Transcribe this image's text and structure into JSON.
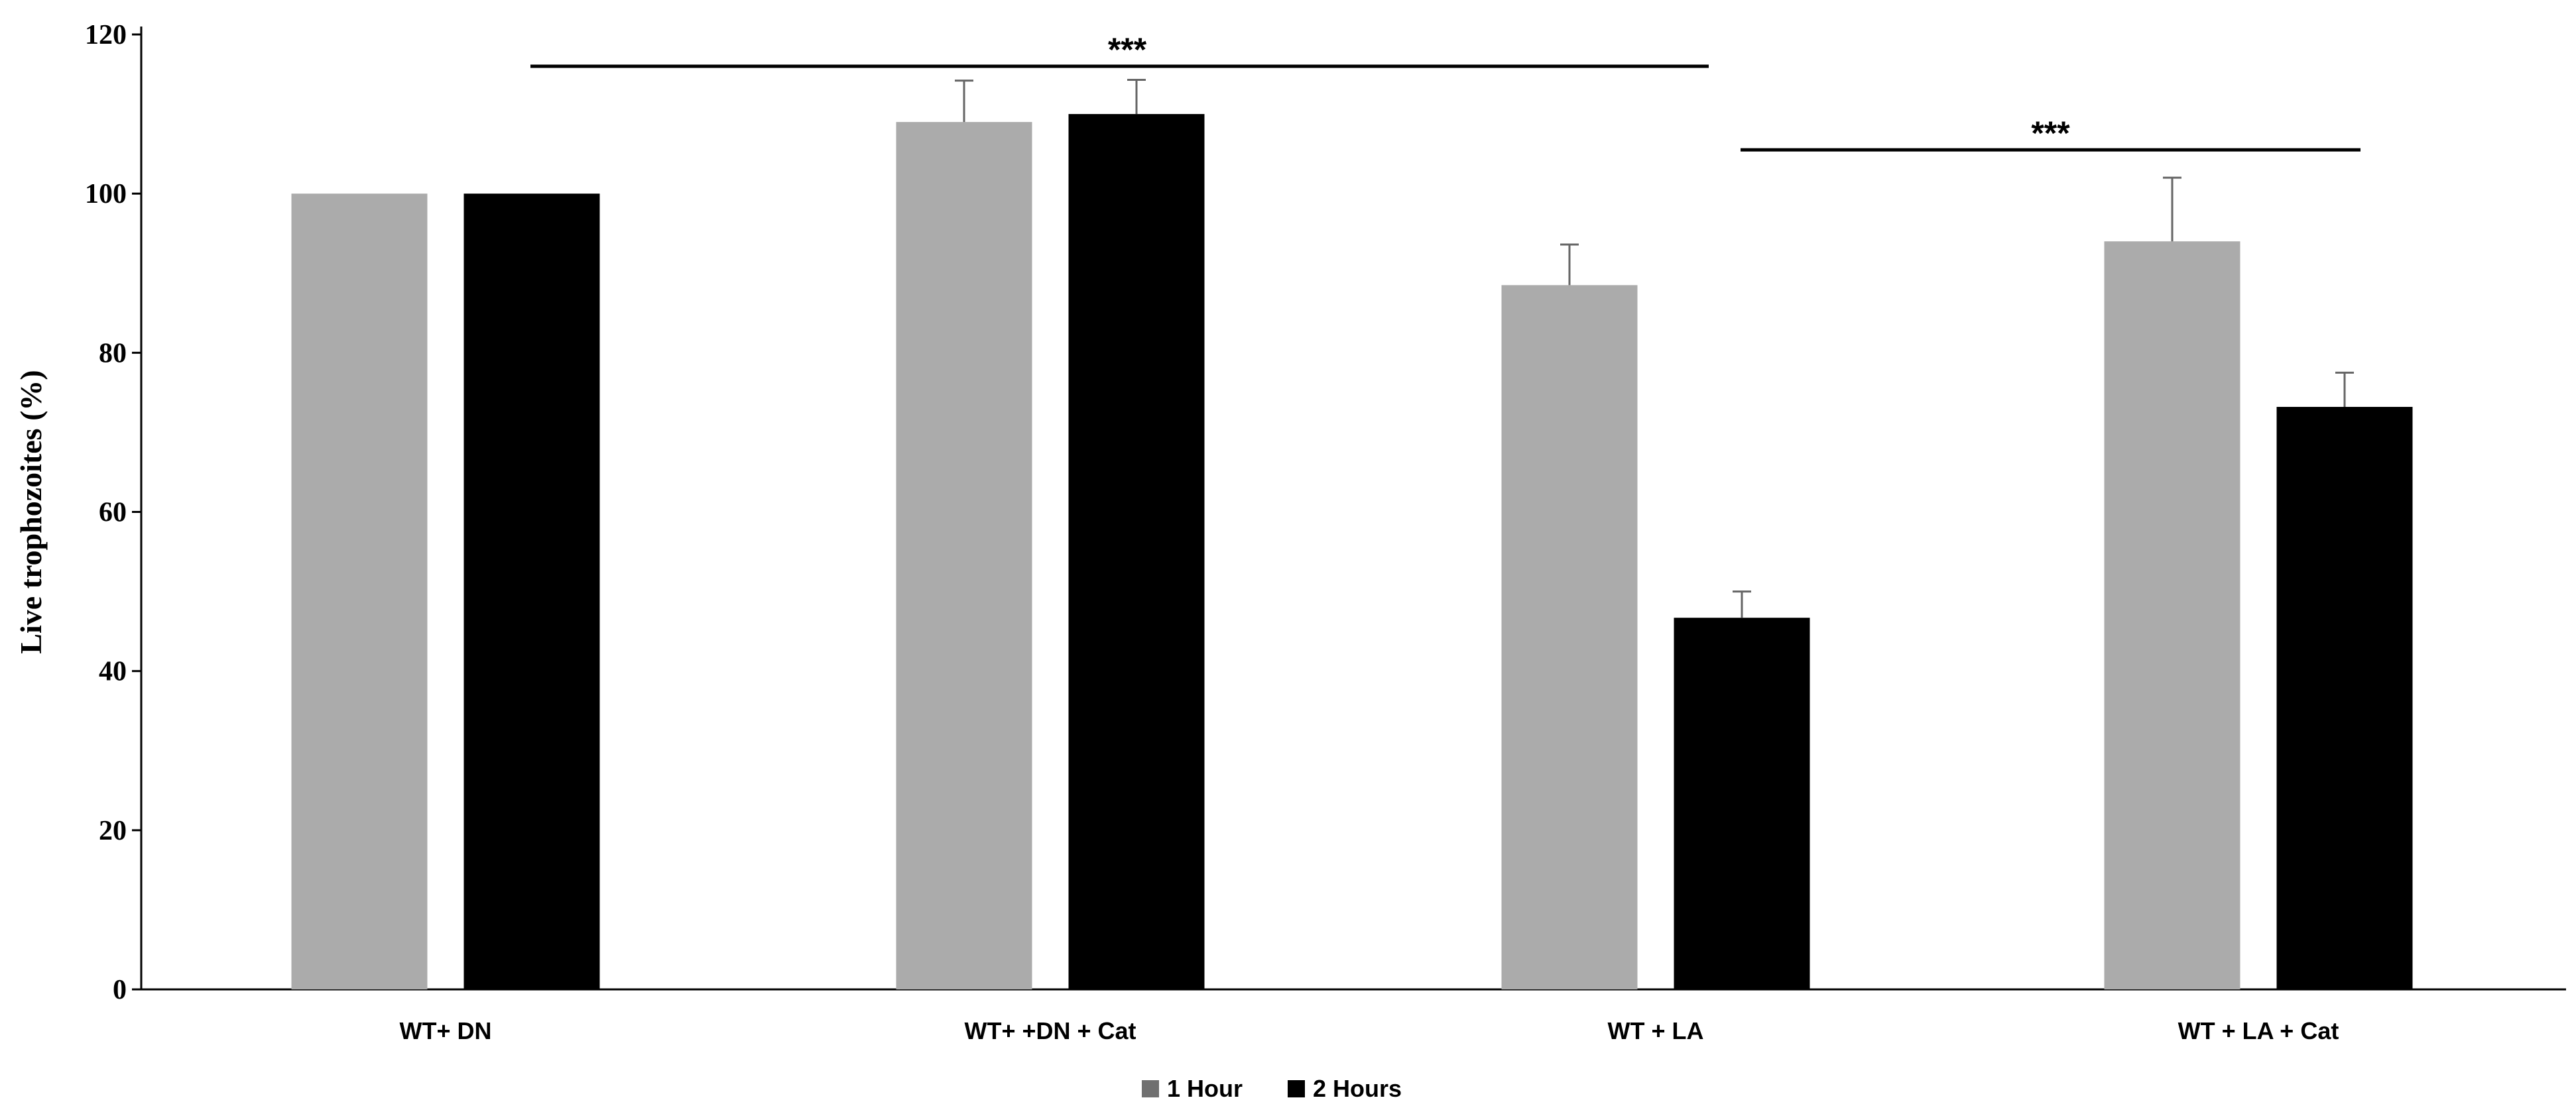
{
  "chart_data": {
    "type": "bar",
    "title": "",
    "xlabel": "",
    "ylabel": "Live trophozoites (%)",
    "ylim": [
      0,
      120
    ],
    "yticks": [
      0,
      20,
      40,
      60,
      80,
      100,
      120
    ],
    "grid": false,
    "legend_position": "bottom-center",
    "categories": [
      "WT+ DN",
      "WT+ +DN + Cat",
      "WT + LA",
      "WT + LA + Cat"
    ],
    "series": [
      {
        "name": "1 Hour",
        "color": "#ababab",
        "values": [
          100,
          109,
          88.5,
          94
        ],
        "errors": [
          0,
          5.2,
          5.1,
          8.0
        ]
      },
      {
        "name": "2 Hours",
        "color": "#000000",
        "values": [
          100,
          110,
          46.7,
          73.2
        ],
        "errors": [
          0,
          4.3,
          3.3,
          4.3
        ]
      }
    ],
    "annotations": [
      {
        "text": "***",
        "from_category": 0,
        "to_category": 2,
        "level": 116
      },
      {
        "text": "***",
        "from_category": 2,
        "to_category": 3,
        "level": 105.5
      }
    ]
  }
}
